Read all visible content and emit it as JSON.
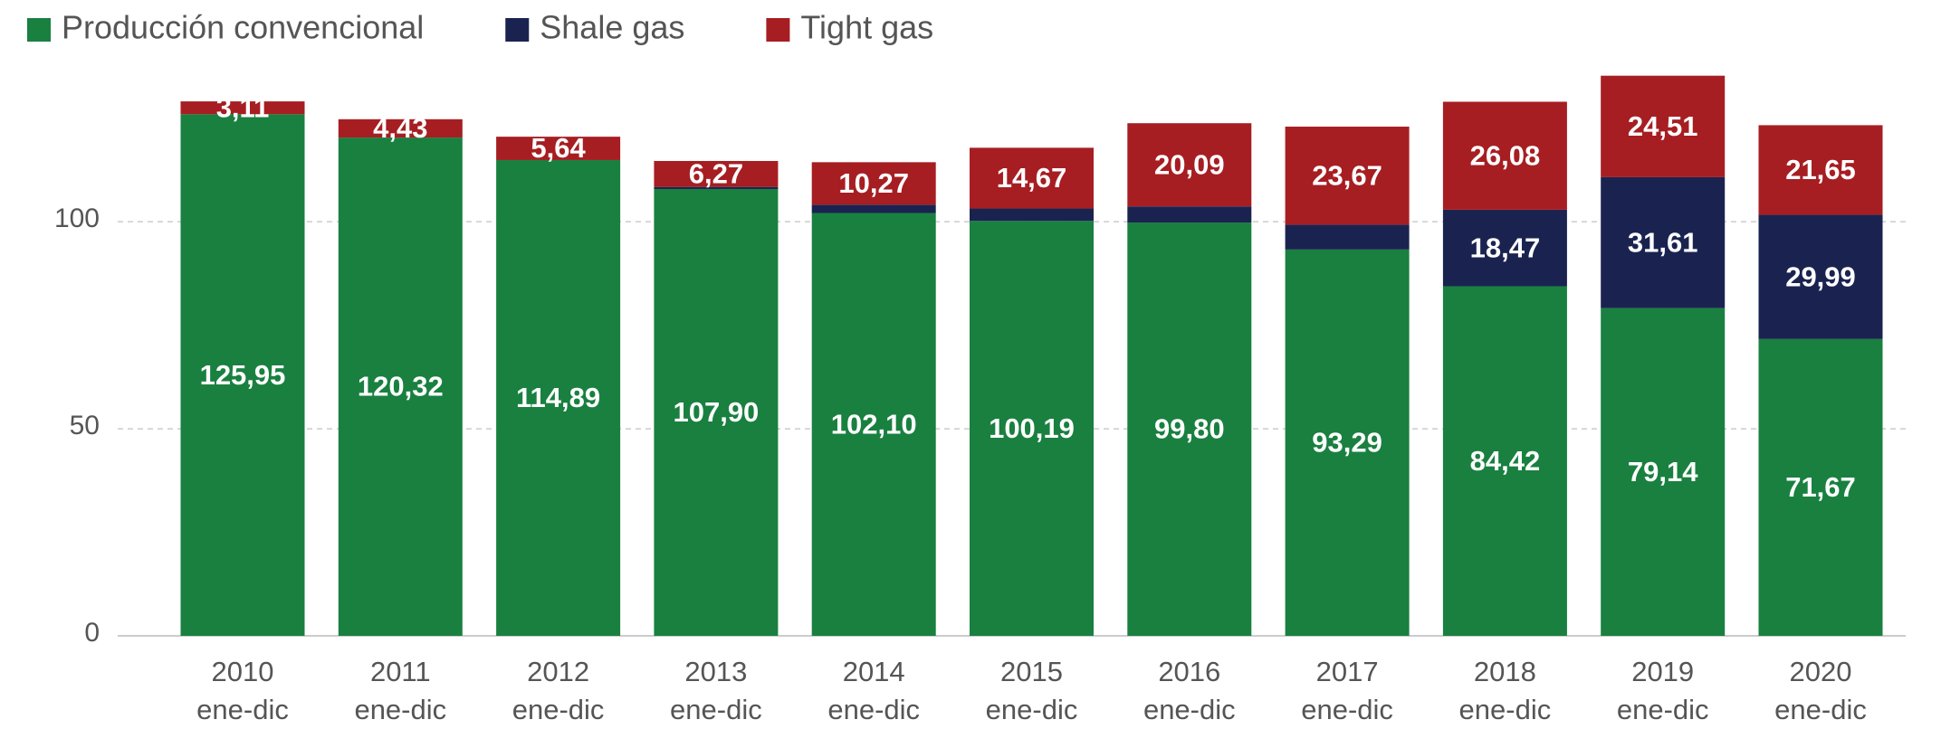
{
  "chart_data": {
    "type": "stacked_bar",
    "categories": [
      [
        "2010",
        "ene-dic"
      ],
      [
        "2011",
        "ene-dic"
      ],
      [
        "2012",
        "ene-dic"
      ],
      [
        "2013",
        "ene-dic"
      ],
      [
        "2014",
        "ene-dic"
      ],
      [
        "2015",
        "ene-dic"
      ],
      [
        "2016",
        "ene-dic"
      ],
      [
        "2017",
        "ene-dic"
      ],
      [
        "2018",
        "ene-dic"
      ],
      [
        "2019",
        "ene-dic"
      ],
      [
        "2020",
        "ene-dic"
      ]
    ],
    "series": [
      {
        "name": "Producción convencional",
        "color": "#198040",
        "values": [
          125.95,
          120.32,
          114.89,
          107.9,
          102.1,
          100.19,
          99.8,
          93.29,
          84.42,
          79.14,
          71.67
        ],
        "value_labels": [
          "125,95",
          "120,32",
          "114,89",
          "107,90",
          "102,10",
          "100,19",
          "99,80",
          "93,29",
          "84,42",
          "79,14",
          "71,67"
        ]
      },
      {
        "name": "Shale gas",
        "color": "#1a2350",
        "values": [
          0,
          0,
          0,
          0.5,
          2,
          3,
          3.9,
          6,
          18.47,
          31.61,
          29.99
        ],
        "value_labels": [
          null,
          null,
          null,
          null,
          null,
          null,
          null,
          null,
          "18,47",
          "31,61",
          "29,99"
        ]
      },
      {
        "name": "Tight gas",
        "color": "#a61e22",
        "values": [
          3.11,
          4.43,
          5.64,
          6.27,
          10.27,
          14.67,
          20.09,
          23.67,
          26.08,
          24.51,
          21.65
        ],
        "value_labels": [
          "3,11",
          "4,43",
          "5,64",
          "6,27",
          "10,27",
          "14,67",
          "20,09",
          "23,67",
          "26,08",
          "24,51",
          "21,65"
        ]
      }
    ],
    "ylim": [
      0,
      140
    ],
    "yticks": [
      0,
      50,
      100
    ],
    "grid": true,
    "legend": "top-left"
  }
}
